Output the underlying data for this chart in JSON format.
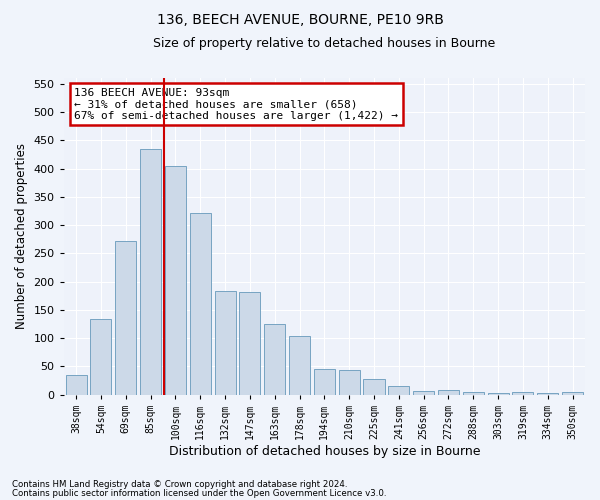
{
  "title1": "136, BEECH AVENUE, BOURNE, PE10 9RB",
  "title2": "Size of property relative to detached houses in Bourne",
  "xlabel": "Distribution of detached houses by size in Bourne",
  "ylabel": "Number of detached properties",
  "categories": [
    "38sqm",
    "54sqm",
    "69sqm",
    "85sqm",
    "100sqm",
    "116sqm",
    "132sqm",
    "147sqm",
    "163sqm",
    "178sqm",
    "194sqm",
    "210sqm",
    "225sqm",
    "241sqm",
    "256sqm",
    "272sqm",
    "288sqm",
    "303sqm",
    "319sqm",
    "334sqm",
    "350sqm"
  ],
  "values": [
    35,
    133,
    271,
    435,
    404,
    321,
    183,
    181,
    125,
    104,
    46,
    44,
    28,
    15,
    7,
    8,
    4,
    3,
    4,
    3,
    4
  ],
  "bar_color": "#ccd9e8",
  "bar_edge_color": "#6699bb",
  "vline_color": "#cc0000",
  "annotation_text": "136 BEECH AVENUE: 93sqm\n← 31% of detached houses are smaller (658)\n67% of semi-detached houses are larger (1,422) →",
  "annotation_box_color": "#ffffff",
  "annotation_box_edge": "#cc0000",
  "ylim": [
    0,
    560
  ],
  "yticks": [
    0,
    50,
    100,
    150,
    200,
    250,
    300,
    350,
    400,
    450,
    500,
    550
  ],
  "footnote1": "Contains HM Land Registry data © Crown copyright and database right 2024.",
  "footnote2": "Contains public sector information licensed under the Open Government Licence v3.0.",
  "bg_color": "#f0f4fb",
  "plot_bg_color": "#eef2fa",
  "grid_color": "#ffffff"
}
